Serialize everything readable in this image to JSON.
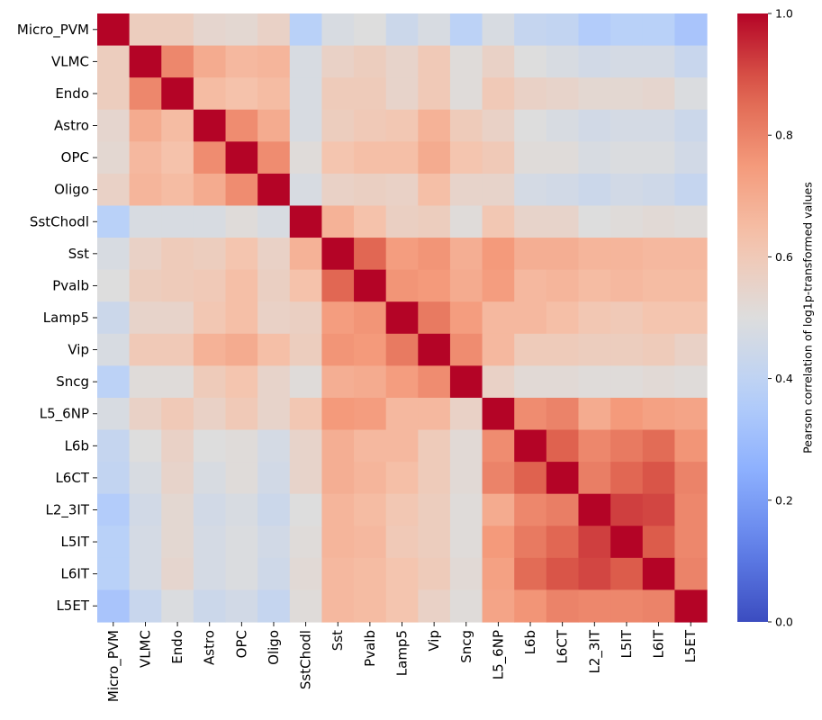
{
  "chart_data": {
    "type": "heatmap",
    "title": "",
    "labels": [
      "Micro_PVM",
      "VLMC",
      "Endo",
      "Astro",
      "OPC",
      "Oligo",
      "SstChodl",
      "Sst",
      "Pvalb",
      "Lamp5",
      "Vip",
      "Sncg",
      "L5_6NP",
      "L6b",
      "L6CT",
      "L2_3IT",
      "L5IT",
      "L6IT",
      "L5ET"
    ],
    "matrix": [
      [
        1.0,
        0.58,
        0.58,
        0.54,
        0.53,
        0.56,
        0.38,
        0.48,
        0.5,
        0.44,
        0.48,
        0.39,
        0.48,
        0.42,
        0.41,
        0.36,
        0.38,
        0.38,
        0.33
      ],
      [
        0.58,
        1.0,
        0.79,
        0.7,
        0.66,
        0.67,
        0.48,
        0.56,
        0.58,
        0.55,
        0.6,
        0.51,
        0.56,
        0.5,
        0.48,
        0.46,
        0.47,
        0.47,
        0.43
      ],
      [
        0.58,
        0.79,
        1.0,
        0.65,
        0.63,
        0.65,
        0.48,
        0.59,
        0.59,
        0.55,
        0.6,
        0.51,
        0.6,
        0.56,
        0.55,
        0.53,
        0.53,
        0.54,
        0.49
      ],
      [
        0.54,
        0.7,
        0.65,
        1.0,
        0.78,
        0.7,
        0.48,
        0.58,
        0.6,
        0.61,
        0.68,
        0.59,
        0.56,
        0.5,
        0.48,
        0.46,
        0.47,
        0.47,
        0.44
      ],
      [
        0.53,
        0.66,
        0.63,
        0.78,
        1.0,
        0.78,
        0.51,
        0.62,
        0.64,
        0.64,
        0.7,
        0.62,
        0.6,
        0.51,
        0.51,
        0.48,
        0.49,
        0.49,
        0.46
      ],
      [
        0.56,
        0.67,
        0.65,
        0.7,
        0.78,
        1.0,
        0.48,
        0.56,
        0.57,
        0.56,
        0.64,
        0.55,
        0.55,
        0.47,
        0.46,
        0.44,
        0.46,
        0.45,
        0.42
      ],
      [
        0.38,
        0.48,
        0.48,
        0.48,
        0.51,
        0.48,
        1.0,
        0.68,
        0.63,
        0.57,
        0.58,
        0.51,
        0.61,
        0.55,
        0.55,
        0.5,
        0.51,
        0.52,
        0.51
      ],
      [
        0.48,
        0.56,
        0.59,
        0.58,
        0.62,
        0.56,
        0.68,
        1.0,
        0.86,
        0.74,
        0.76,
        0.69,
        0.75,
        0.69,
        0.69,
        0.67,
        0.67,
        0.66,
        0.66
      ],
      [
        0.5,
        0.58,
        0.59,
        0.6,
        0.64,
        0.57,
        0.63,
        0.86,
        1.0,
        0.76,
        0.75,
        0.7,
        0.74,
        0.66,
        0.67,
        0.65,
        0.66,
        0.65,
        0.65
      ],
      [
        0.44,
        0.55,
        0.55,
        0.61,
        0.64,
        0.56,
        0.57,
        0.74,
        0.76,
        1.0,
        0.82,
        0.74,
        0.66,
        0.66,
        0.64,
        0.61,
        0.6,
        0.62,
        0.62
      ],
      [
        0.48,
        0.6,
        0.6,
        0.68,
        0.7,
        0.64,
        0.58,
        0.76,
        0.75,
        0.82,
        1.0,
        0.78,
        0.66,
        0.59,
        0.59,
        0.58,
        0.58,
        0.59,
        0.56
      ],
      [
        0.39,
        0.51,
        0.51,
        0.59,
        0.62,
        0.55,
        0.51,
        0.69,
        0.7,
        0.74,
        0.78,
        1.0,
        0.56,
        0.52,
        0.52,
        0.51,
        0.51,
        0.52,
        0.51
      ],
      [
        0.48,
        0.56,
        0.6,
        0.56,
        0.6,
        0.55,
        0.61,
        0.75,
        0.74,
        0.66,
        0.66,
        0.56,
        1.0,
        0.78,
        0.8,
        0.7,
        0.75,
        0.73,
        0.72
      ],
      [
        0.42,
        0.5,
        0.56,
        0.5,
        0.51,
        0.47,
        0.55,
        0.69,
        0.66,
        0.66,
        0.59,
        0.52,
        0.78,
        1.0,
        0.87,
        0.79,
        0.82,
        0.85,
        0.76
      ],
      [
        0.41,
        0.48,
        0.55,
        0.48,
        0.51,
        0.46,
        0.55,
        0.69,
        0.67,
        0.64,
        0.59,
        0.52,
        0.8,
        0.87,
        1.0,
        0.81,
        0.86,
        0.89,
        0.8
      ],
      [
        0.36,
        0.46,
        0.53,
        0.46,
        0.48,
        0.44,
        0.5,
        0.67,
        0.65,
        0.61,
        0.58,
        0.51,
        0.7,
        0.79,
        0.81,
        1.0,
        0.92,
        0.91,
        0.79
      ],
      [
        0.38,
        0.47,
        0.53,
        0.47,
        0.49,
        0.46,
        0.51,
        0.67,
        0.66,
        0.6,
        0.58,
        0.51,
        0.75,
        0.82,
        0.86,
        0.92,
        1.0,
        0.88,
        0.79
      ],
      [
        0.38,
        0.47,
        0.54,
        0.47,
        0.49,
        0.45,
        0.52,
        0.66,
        0.65,
        0.62,
        0.59,
        0.52,
        0.73,
        0.85,
        0.89,
        0.91,
        0.88,
        1.0,
        0.8
      ],
      [
        0.33,
        0.43,
        0.49,
        0.44,
        0.46,
        0.42,
        0.51,
        0.66,
        0.65,
        0.62,
        0.56,
        0.51,
        0.72,
        0.76,
        0.8,
        0.79,
        0.79,
        0.8,
        1.0
      ]
    ],
    "vmin": 0.0,
    "vmax": 1.0,
    "colormap": "coolwarm",
    "colorbar": {
      "label": "Pearson correlation of log1p-transformed values",
      "ticks": [
        "0.0",
        "0.2",
        "0.4",
        "0.6",
        "0.8",
        "1.0"
      ],
      "tick_values": [
        0.0,
        0.2,
        0.4,
        0.6,
        0.8,
        1.0
      ],
      "placement": "right"
    }
  }
}
